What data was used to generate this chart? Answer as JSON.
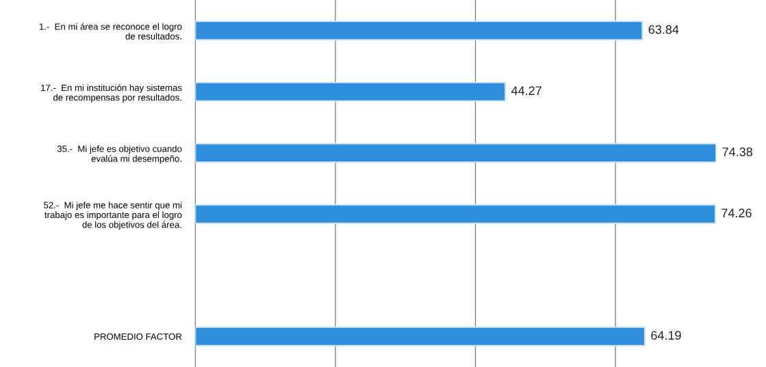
{
  "chart_data": {
    "type": "bar",
    "orientation": "horizontal",
    "categories": [
      "1.-  En mi área se reconoce el logro\nde resultados.",
      "17.-  En mi institución hay sistemas\nde recompensas por resultados.",
      "35.-  Mi jefe es objetivo cuando\nevalúa mi desempeño.",
      "52.-  Mi jefe me hace sentir que mi\ntrabajo es importante para el logro\nde los objetivos del área.",
      null,
      "PROMEDIO FACTOR"
    ],
    "values": [
      63.84,
      44.27,
      74.38,
      74.26,
      null,
      64.19
    ],
    "color": "#2f8fdc",
    "xticks": [
      {
        "value": 0,
        "label": null
      },
      {
        "value": 20,
        "label": null
      },
      {
        "value": 40,
        "label": null
      },
      {
        "value": 60,
        "label": null
      }
    ],
    "grid": "x",
    "data_labels": true,
    "legend": false
  }
}
